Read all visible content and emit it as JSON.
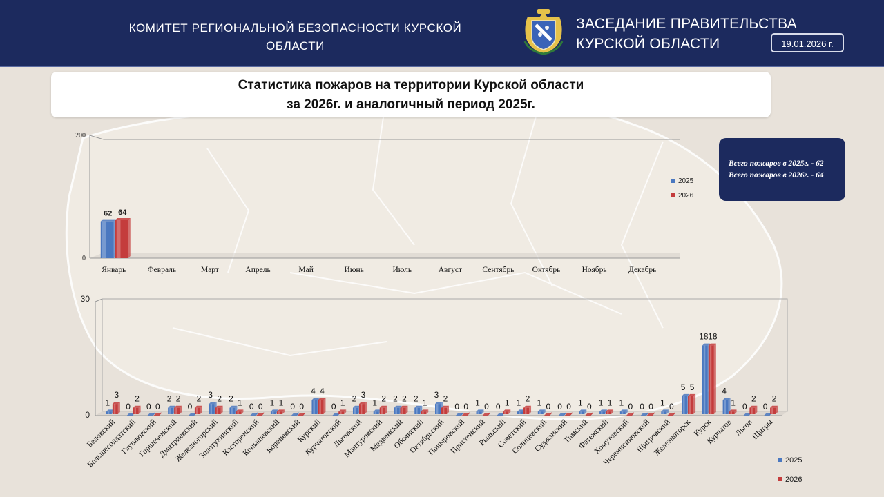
{
  "header": {
    "left_title_line1": "КОМИТЕТ РЕГИОНАЛЬНОЙ БЕЗОПАСНОСТИ КУРСКОЙ",
    "left_title_line2": "ОБЛАСТИ",
    "right_title_line1": "ЗАСЕДАНИЕ ПРАВИТЕЛЬСТВА",
    "right_title_line2": "КУРСКОЙ ОБЛАСТИ",
    "date": "19.01.2026 г."
  },
  "main_title": {
    "line1": "Статистика пожаров на территории Курской области",
    "line2": "за 2026г. и аналогичный период 2025г."
  },
  "totals": {
    "line1": "Всего пожаров в 2025г. - 62",
    "line2": "Всего пожаров в 2026г. - 64"
  },
  "colors": {
    "header_bg": "#1c2a5e",
    "series_2025": "#4a78c0",
    "series_2026": "#c43c3c"
  },
  "chart_data": [
    {
      "type": "bar",
      "categories": [
        "Январь",
        "Февраль",
        "Март",
        "Апрель",
        "Май",
        "Июнь",
        "Июль",
        "Август",
        "Сентябрь",
        "Октябрь",
        "Ноябрь",
        "Декабрь"
      ],
      "series": [
        {
          "name": "2025",
          "values": [
            62,
            null,
            null,
            null,
            null,
            null,
            null,
            null,
            null,
            null,
            null,
            null
          ]
        },
        {
          "name": "2026",
          "values": [
            64,
            null,
            null,
            null,
            null,
            null,
            null,
            null,
            null,
            null,
            null,
            null
          ]
        }
      ],
      "ylim": [
        0,
        200
      ],
      "yticks": [
        "0",
        "200"
      ],
      "legend": "right"
    },
    {
      "type": "bar",
      "categories": [
        "Беловский",
        "Большесолдатский",
        "Глушковский",
        "Горшеченский",
        "Дмитриевский",
        "Железногорский",
        "Золотухинский",
        "Касторенский",
        "Конышевский",
        "Кореневский",
        "Курский",
        "Курчатовский",
        "Льговский",
        "Мантуровский",
        "Медвенский",
        "Обоянский",
        "Октябрьский",
        "Поныровский",
        "Пристенский",
        "Рыльский",
        "Советский",
        "Солнцевский",
        "Суджанский",
        "Тимский",
        "Фатежский",
        "Хомутовский",
        "Черемисиновский",
        "Щигровский",
        "Железногорск",
        "Курск",
        "Курчатов",
        "Льгов",
        "Щигры"
      ],
      "series": [
        {
          "name": "2025",
          "values": [
            1,
            0,
            0,
            2,
            0,
            3,
            2,
            0,
            1,
            0,
            4,
            0,
            2,
            1,
            2,
            2,
            3,
            0,
            1,
            0,
            1,
            1,
            0,
            1,
            1,
            1,
            0,
            1,
            5,
            18,
            4,
            0,
            0
          ]
        },
        {
          "name": "2026",
          "values": [
            3,
            2,
            0,
            2,
            2,
            2,
            1,
            0,
            1,
            0,
            4,
            1,
            3,
            2,
            2,
            1,
            2,
            0,
            0,
            1,
            2,
            0,
            0,
            0,
            1,
            0,
            0,
            0,
            5,
            18,
            1,
            2,
            2
          ]
        }
      ],
      "ylim": [
        0,
        30
      ],
      "yticks": [
        "0",
        "30"
      ],
      "legend": "bottom-right"
    }
  ]
}
